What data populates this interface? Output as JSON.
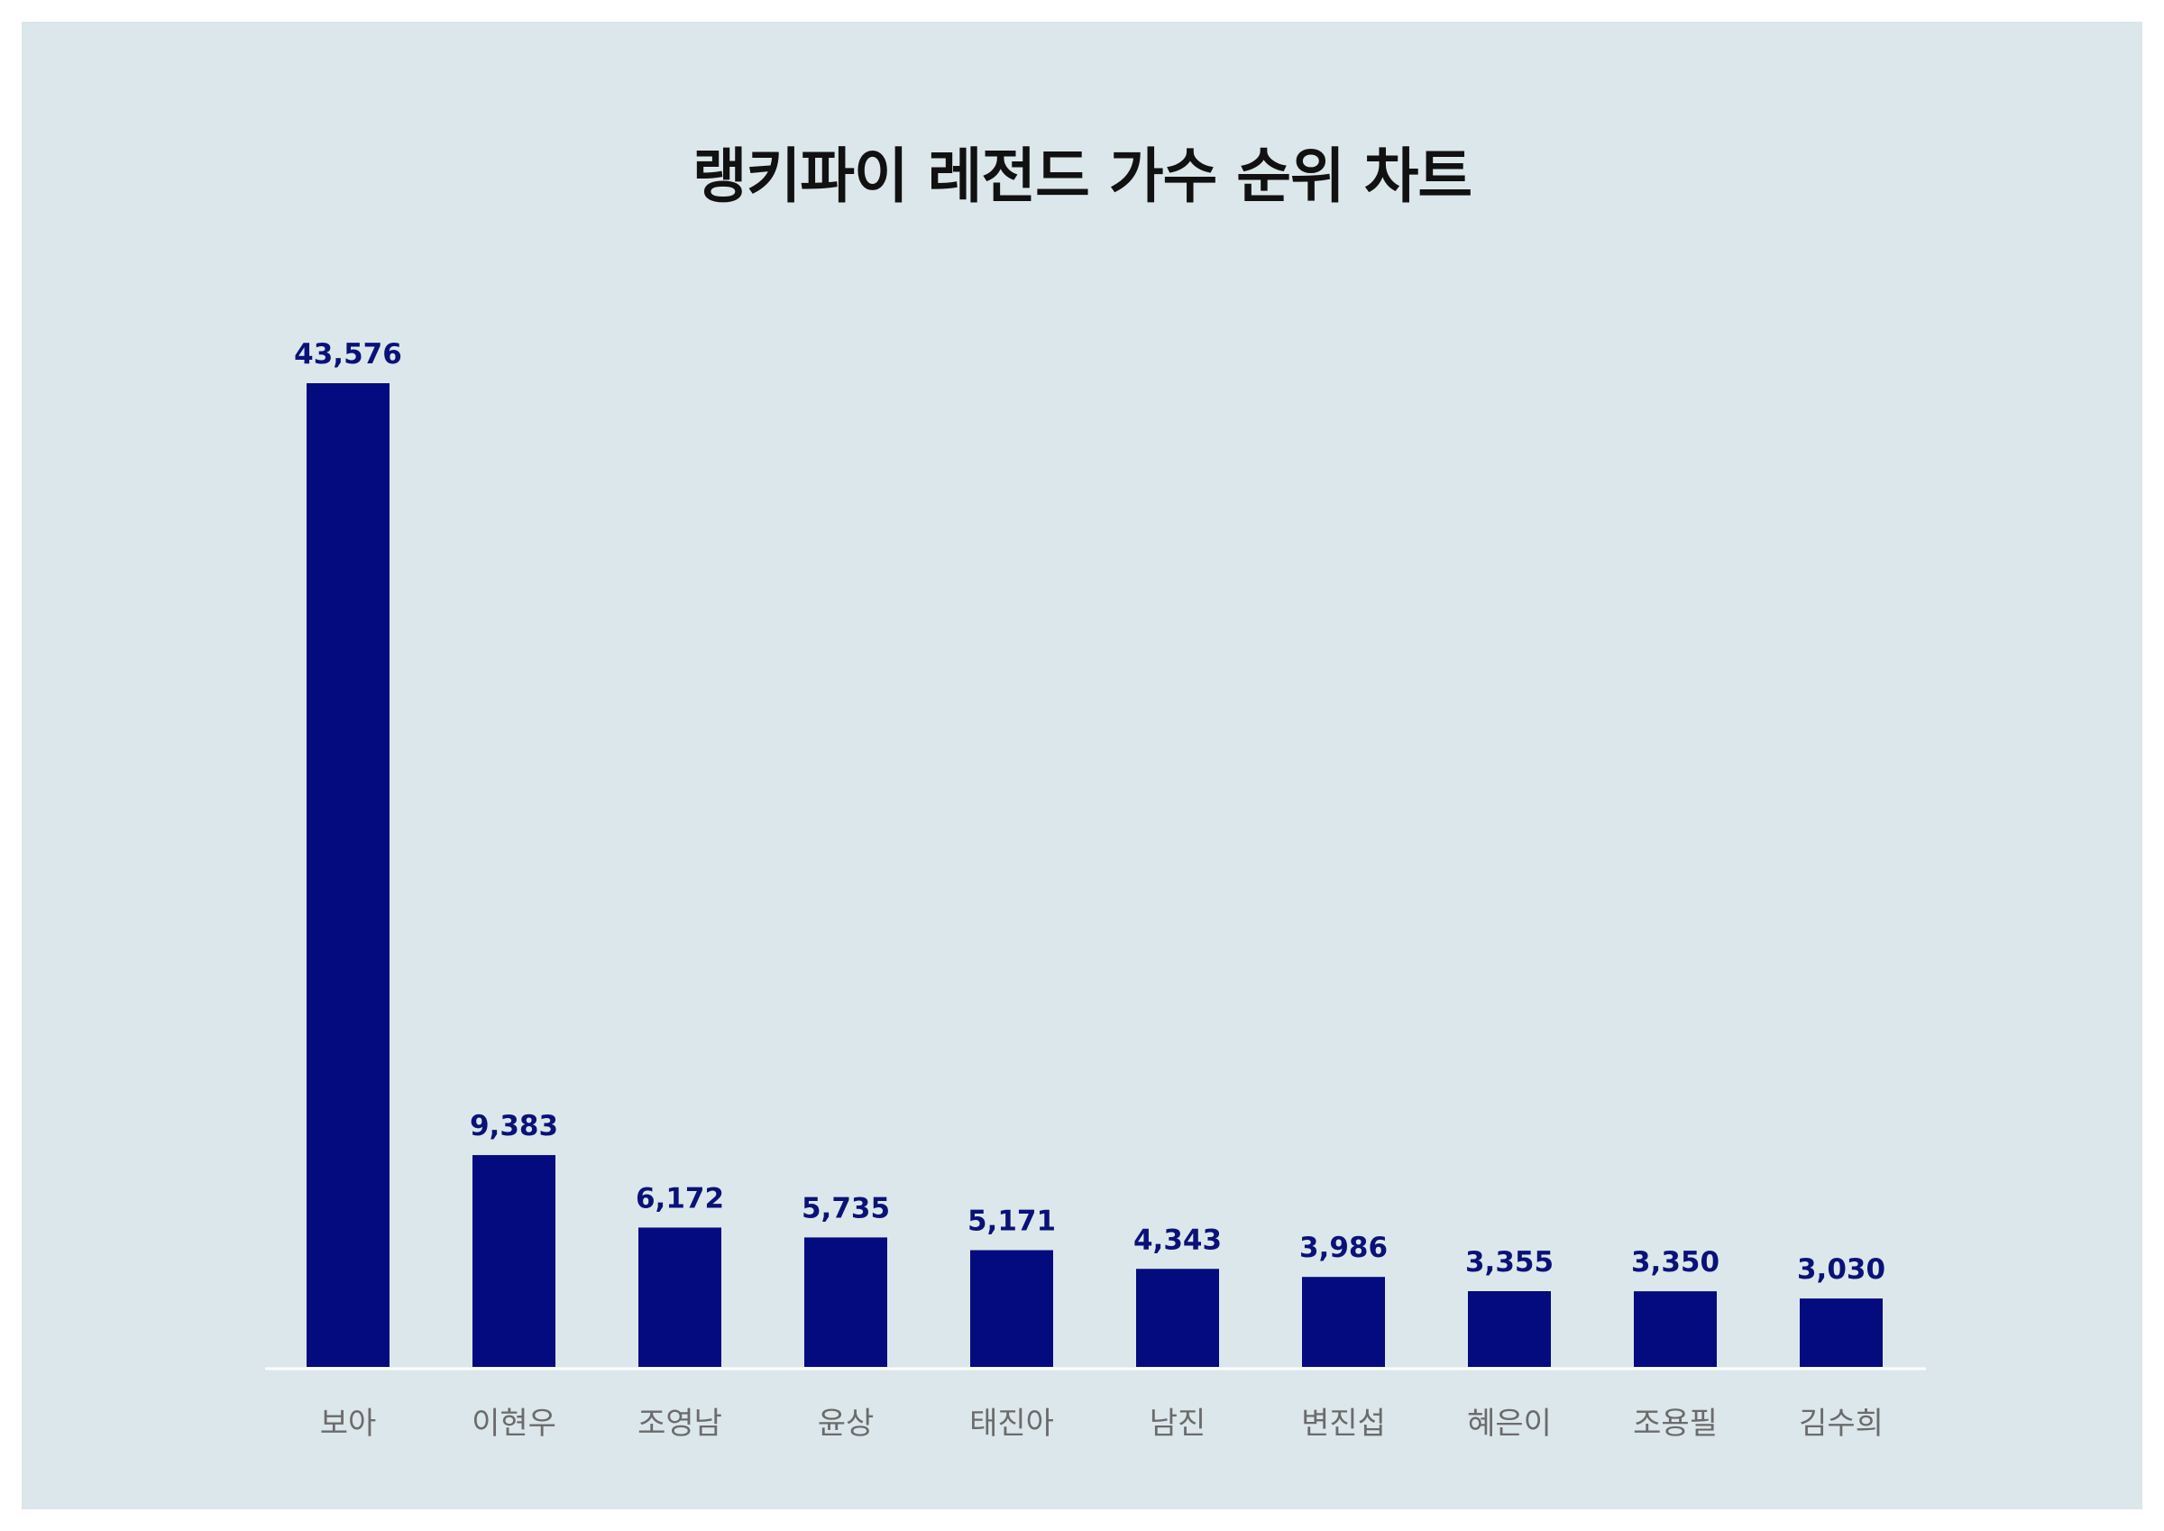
{
  "chart_data": {
    "type": "bar",
    "title": "랭키파이 레전드 가수 순위 차트",
    "xlabel": "",
    "ylabel": "",
    "categories": [
      "보아",
      "이현우",
      "조영남",
      "윤상",
      "태진아",
      "남진",
      "변진섭",
      "혜은이",
      "조용필",
      "김수희"
    ],
    "values": [
      43576,
      9383,
      6172,
      5735,
      5171,
      4343,
      3986,
      3355,
      3350,
      3030
    ],
    "value_labels": [
      "43,576",
      "9,383",
      "6,172",
      "5,735",
      "5,171",
      "4,343",
      "3,986",
      "3,355",
      "3,350",
      "3,030"
    ],
    "ylim": [
      0,
      43576
    ],
    "grid": false,
    "legend": "none",
    "colors": {
      "bar": "#030b7e",
      "value_label": "#0a1278",
      "category_label": "#6b6b6b",
      "background": "#dce7eb",
      "baseline": "#ffffff"
    }
  }
}
